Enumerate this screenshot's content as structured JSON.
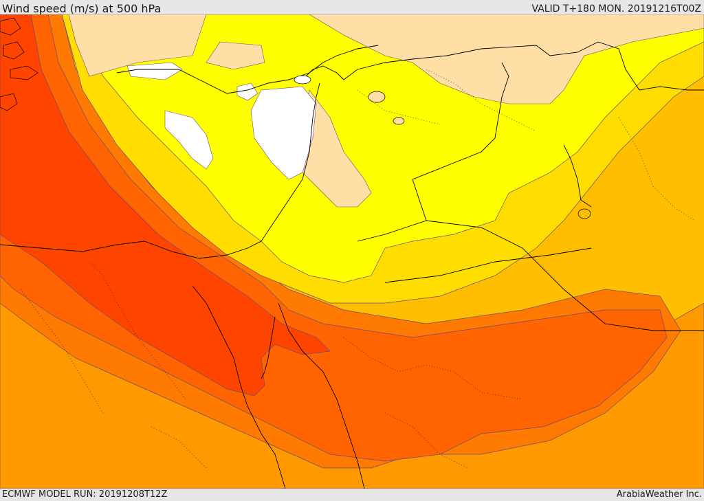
{
  "header": {
    "title": "Wind speed (m/s) at 500 hPa",
    "valid": "VALID T+180 MON. 20191216T00Z"
  },
  "footer": {
    "model_run": "ECMWF MODEL RUN: 20191208T12Z",
    "credit": "ArabiaWeather Inc."
  },
  "map": {
    "variable": "wind speed",
    "level": "500 hPa",
    "colors": {
      "calm": "#ffffff",
      "light": "#ffdfa6",
      "yellow": "#ffff00",
      "yellow_orange": "#ffdd00",
      "amber": "#ffbf00",
      "orange_light": "#ff9900",
      "orange": "#ff7a00",
      "orange_dark": "#ff6400",
      "red_orange": "#ff4400",
      "contour_line": "#6a4a7a",
      "coastline": "#000000"
    }
  }
}
